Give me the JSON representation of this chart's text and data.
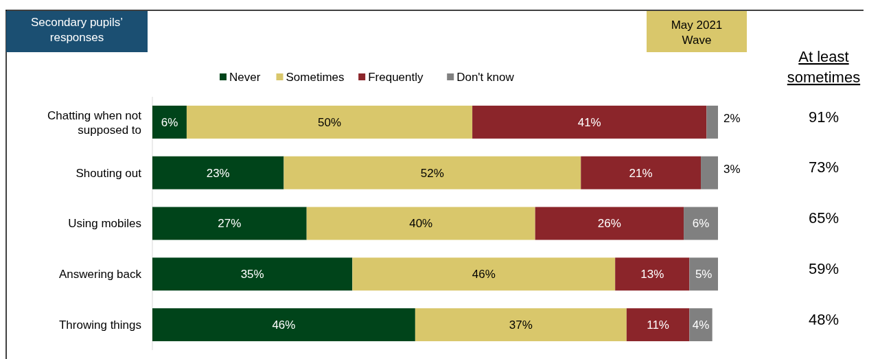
{
  "chart_data": {
    "type": "bar",
    "orientation": "horizontal",
    "stacked": true,
    "legend": "top",
    "title": "Secondary pupils’ responses",
    "subtitle": "May 2021 Wave",
    "categories": [
      "Chatting when not supposed to",
      "Shouting out",
      "Using mobiles",
      "Answering back",
      "Throwing things"
    ],
    "series": [
      {
        "name": "Never",
        "color": "#00441a",
        "values": [
          6,
          23,
          27,
          35,
          46
        ],
        "value_labels": [
          "6%",
          "23%",
          "27%",
          "35%",
          "46%"
        ]
      },
      {
        "name": "Sometimes",
        "color": "#d9c76b",
        "values": [
          50,
          52,
          40,
          46,
          37
        ],
        "value_labels": [
          "50%",
          "52%",
          "40%",
          "46%",
          "37%"
        ]
      },
      {
        "name": "Frequently",
        "color": "#8b252a",
        "values": [
          41,
          21,
          26,
          13,
          11
        ],
        "value_labels": [
          "41%",
          "21%",
          "26%",
          "13%",
          "11%"
        ]
      },
      {
        "name": "Don't know",
        "color": "#808080",
        "values": [
          2,
          3,
          6,
          5,
          4
        ],
        "value_labels": [
          "2%",
          "3%",
          "6%",
          "5%",
          "4%"
        ]
      }
    ],
    "annotations": [
      "At least sometimes",
      "91%",
      "73%",
      "65%",
      "59%",
      "48%"
    ]
  }
}
